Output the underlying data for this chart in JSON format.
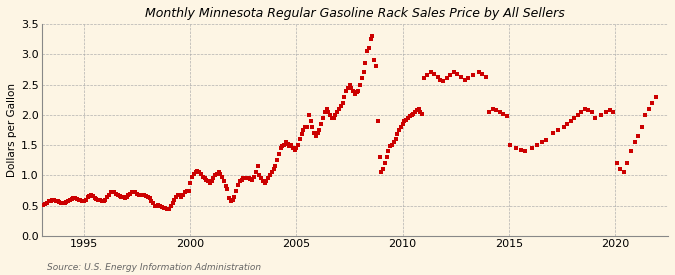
{
  "title": "Monthly Minnesota Regular Gasoline Rack Sales Price by All Sellers",
  "ylabel": "Dollars per Gallon",
  "source": "Source: U.S. Energy Information Administration",
  "background_color": "#fdf5e4",
  "plot_bg_color": "#fdf5e4",
  "marker_color": "#cc0000",
  "marker": "s",
  "markersize": 2.8,
  "xlim": [
    1993.0,
    2022.5
  ],
  "ylim": [
    0.0,
    3.5
  ],
  "xticks": [
    1995,
    2000,
    2005,
    2010,
    2015,
    2020
  ],
  "yticks": [
    0.0,
    0.5,
    1.0,
    1.5,
    2.0,
    2.5,
    3.0,
    3.5
  ],
  "dates": [
    1993.08,
    1993.17,
    1993.25,
    1993.33,
    1993.42,
    1993.5,
    1993.58,
    1993.67,
    1993.75,
    1993.83,
    1993.92,
    1994.0,
    1994.08,
    1994.17,
    1994.25,
    1994.33,
    1994.42,
    1994.5,
    1994.58,
    1994.67,
    1994.75,
    1994.83,
    1994.92,
    1995.0,
    1995.08,
    1995.17,
    1995.25,
    1995.33,
    1995.42,
    1995.5,
    1995.58,
    1995.67,
    1995.75,
    1995.83,
    1995.92,
    1996.0,
    1996.08,
    1996.17,
    1996.25,
    1996.33,
    1996.42,
    1996.5,
    1996.58,
    1996.67,
    1996.75,
    1996.83,
    1996.92,
    1997.0,
    1997.08,
    1997.17,
    1997.25,
    1997.33,
    1997.42,
    1997.5,
    1997.58,
    1997.67,
    1997.75,
    1997.83,
    1997.92,
    1998.0,
    1998.08,
    1998.17,
    1998.25,
    1998.33,
    1998.42,
    1998.5,
    1998.58,
    1998.67,
    1998.75,
    1998.83,
    1998.92,
    1999.0,
    1999.08,
    1999.17,
    1999.25,
    1999.33,
    1999.42,
    1999.5,
    1999.58,
    1999.67,
    1999.75,
    1999.83,
    1999.92,
    2000.0,
    2000.08,
    2000.17,
    2000.25,
    2000.33,
    2000.42,
    2000.5,
    2000.58,
    2000.67,
    2000.75,
    2000.83,
    2000.92,
    2001.0,
    2001.08,
    2001.17,
    2001.25,
    2001.33,
    2001.42,
    2001.5,
    2001.58,
    2001.67,
    2001.75,
    2001.83,
    2001.92,
    2002.0,
    2002.08,
    2002.17,
    2002.25,
    2002.33,
    2002.42,
    2002.5,
    2002.58,
    2002.67,
    2002.75,
    2002.83,
    2002.92,
    2003.0,
    2003.08,
    2003.17,
    2003.25,
    2003.33,
    2003.42,
    2003.5,
    2003.58,
    2003.67,
    2003.75,
    2003.83,
    2003.92,
    2004.0,
    2004.08,
    2004.17,
    2004.25,
    2004.33,
    2004.42,
    2004.5,
    2004.58,
    2004.67,
    2004.75,
    2004.83,
    2004.92,
    2005.0,
    2005.08,
    2005.17,
    2005.25,
    2005.33,
    2005.42,
    2005.5,
    2005.58,
    2005.67,
    2005.75,
    2005.83,
    2005.92,
    2006.0,
    2006.08,
    2006.17,
    2006.25,
    2006.33,
    2006.42,
    2006.5,
    2006.58,
    2006.67,
    2006.75,
    2006.83,
    2006.92,
    2007.0,
    2007.08,
    2007.17,
    2007.25,
    2007.33,
    2007.42,
    2007.5,
    2007.58,
    2007.67,
    2007.75,
    2007.83,
    2007.92,
    2008.0,
    2008.08,
    2008.17,
    2008.25,
    2008.33,
    2008.42,
    2008.5,
    2008.58,
    2008.67,
    2008.75,
    2008.83,
    2008.92,
    2009.0,
    2009.08,
    2009.17,
    2009.25,
    2009.33,
    2009.42,
    2009.5,
    2009.58,
    2009.67,
    2009.75,
    2009.83,
    2009.92,
    2010.0,
    2010.08,
    2010.17,
    2010.25,
    2010.33,
    2010.42,
    2010.5,
    2010.58,
    2010.67,
    2010.75,
    2010.83,
    2010.92,
    2011.0,
    2011.17,
    2011.33,
    2011.5,
    2011.67,
    2011.75,
    2011.92,
    2012.08,
    2012.25,
    2012.42,
    2012.58,
    2012.75,
    2012.92,
    2013.08,
    2013.33,
    2013.58,
    2013.75,
    2013.92,
    2014.08,
    2014.25,
    2014.42,
    2014.58,
    2014.75,
    2014.92,
    2015.08,
    2015.33,
    2015.58,
    2015.75,
    2016.08,
    2016.33,
    2016.58,
    2016.75,
    2017.08,
    2017.33,
    2017.58,
    2017.75,
    2017.92,
    2018.08,
    2018.25,
    2018.42,
    2018.58,
    2018.75,
    2018.92,
    2019.08,
    2019.33,
    2019.58,
    2019.75,
    2019.92,
    2020.08,
    2020.25,
    2020.42,
    2020.58,
    2020.75,
    2020.92,
    2021.08,
    2021.25,
    2021.42,
    2021.58,
    2021.75,
    2021.92
  ],
  "values": [
    0.52,
    0.53,
    0.55,
    0.57,
    0.58,
    0.6,
    0.6,
    0.58,
    0.57,
    0.56,
    0.55,
    0.54,
    0.55,
    0.56,
    0.58,
    0.6,
    0.61,
    0.62,
    0.62,
    0.61,
    0.6,
    0.59,
    0.58,
    0.58,
    0.6,
    0.64,
    0.66,
    0.67,
    0.66,
    0.63,
    0.61,
    0.6,
    0.59,
    0.58,
    0.57,
    0.6,
    0.65,
    0.68,
    0.72,
    0.73,
    0.72,
    0.7,
    0.68,
    0.66,
    0.65,
    0.64,
    0.63,
    0.65,
    0.68,
    0.7,
    0.72,
    0.73,
    0.72,
    0.7,
    0.68,
    0.67,
    0.68,
    0.67,
    0.66,
    0.65,
    0.62,
    0.58,
    0.54,
    0.5,
    0.5,
    0.51,
    0.49,
    0.48,
    0.47,
    0.46,
    0.44,
    0.44,
    0.5,
    0.55,
    0.6,
    0.65,
    0.68,
    0.67,
    0.65,
    0.68,
    0.72,
    0.75,
    0.74,
    0.88,
    0.98,
    1.02,
    1.05,
    1.08,
    1.05,
    1.02,
    0.98,
    0.95,
    0.92,
    0.9,
    0.88,
    0.9,
    0.95,
    1.0,
    1.03,
    1.05,
    1.02,
    0.98,
    0.9,
    0.82,
    0.78,
    0.62,
    0.58,
    0.6,
    0.65,
    0.75,
    0.85,
    0.9,
    0.92,
    0.95,
    0.95,
    0.96,
    0.95,
    0.94,
    0.92,
    0.98,
    1.05,
    1.15,
    1.0,
    0.95,
    0.9,
    0.88,
    0.9,
    0.95,
    1.0,
    1.05,
    1.1,
    1.15,
    1.25,
    1.35,
    1.45,
    1.48,
    1.5,
    1.55,
    1.52,
    1.48,
    1.5,
    1.45,
    1.42,
    1.45,
    1.5,
    1.6,
    1.68,
    1.75,
    1.8,
    1.8,
    2.0,
    1.9,
    1.8,
    1.7,
    1.65,
    1.7,
    1.75,
    1.85,
    1.95,
    2.05,
    2.1,
    2.05,
    2.0,
    1.95,
    1.95,
    2.0,
    2.05,
    2.1,
    2.15,
    2.2,
    2.3,
    2.4,
    2.45,
    2.5,
    2.45,
    2.4,
    2.35,
    2.38,
    2.4,
    2.5,
    2.6,
    2.7,
    2.85,
    3.05,
    3.1,
    3.25,
    3.3,
    2.9,
    2.8,
    1.9,
    1.3,
    1.05,
    1.1,
    1.2,
    1.3,
    1.4,
    1.48,
    1.5,
    1.55,
    1.6,
    1.68,
    1.75,
    1.8,
    1.85,
    1.9,
    1.92,
    1.95,
    1.98,
    2.0,
    2.02,
    2.05,
    2.08,
    2.1,
    2.05,
    2.02,
    2.6,
    2.65,
    2.7,
    2.68,
    2.62,
    2.58,
    2.55,
    2.6,
    2.65,
    2.7,
    2.68,
    2.62,
    2.58,
    2.6,
    2.65,
    2.7,
    2.68,
    2.62,
    2.05,
    2.1,
    2.08,
    2.05,
    2.02,
    1.98,
    1.5,
    1.45,
    1.42,
    1.4,
    1.45,
    1.5,
    1.55,
    1.58,
    1.7,
    1.75,
    1.8,
    1.85,
    1.9,
    1.95,
    2.0,
    2.05,
    2.1,
    2.08,
    2.05,
    1.95,
    2.0,
    2.05,
    2.08,
    2.05,
    1.2,
    1.1,
    1.05,
    1.2,
    1.4,
    1.55,
    1.65,
    1.8,
    2.0,
    2.1,
    2.2,
    2.3
  ]
}
